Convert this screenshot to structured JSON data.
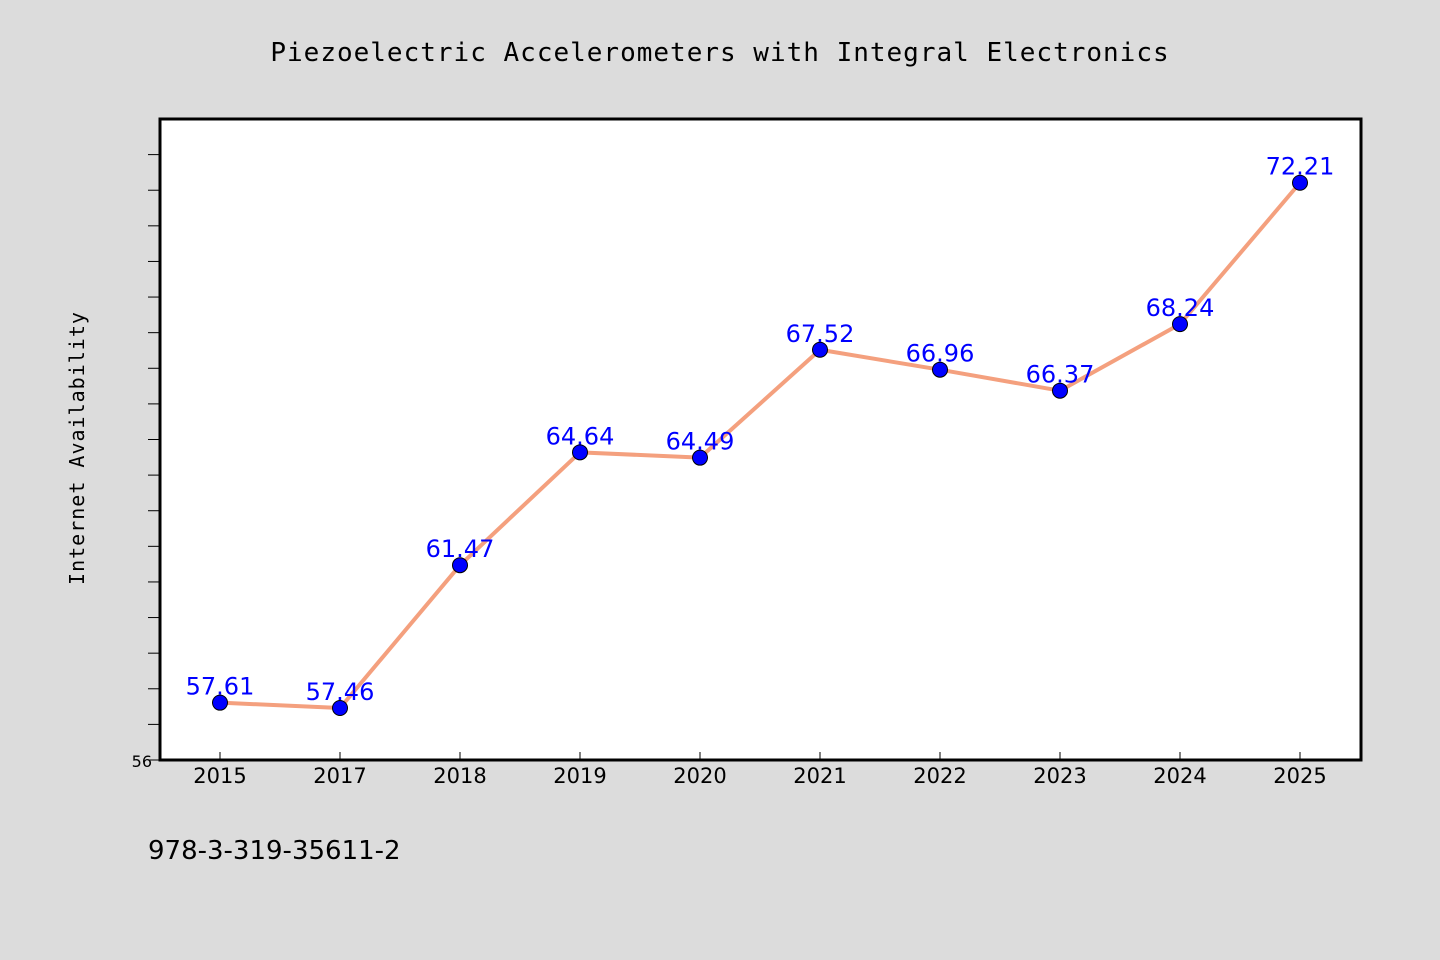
{
  "footer_text": "978-3-319-35611-2",
  "colors": {
    "background": "#dcdcdc",
    "plot_background": "#ffffff",
    "line": "#f4a07e",
    "marker": "#0000ff",
    "data_label": "#0000ff"
  },
  "chart_data": {
    "type": "line",
    "title": "Piezoelectric Accelerometers with Integral Electronics",
    "xlabel": "",
    "ylabel": "Internet Availability",
    "categories": [
      "2015",
      "2017",
      "2018",
      "2019",
      "2020",
      "2021",
      "2022",
      "2023",
      "2024",
      "2025"
    ],
    "series": [
      {
        "values": [
          57.61,
          57.46,
          61.47,
          64.64,
          64.49,
          67.52,
          66.96,
          66.37,
          68.24,
          72.21
        ],
        "labels": [
          "57.61",
          "57.46",
          "61.47",
          "64.64",
          "64.49",
          "67.52",
          "66.96",
          "66.37",
          "68.24",
          "72.21"
        ]
      }
    ],
    "ylim": [
      56,
      74
    ],
    "ytick_labels": [
      "56"
    ],
    "grid": false,
    "legend": "none",
    "marker": "circle"
  }
}
